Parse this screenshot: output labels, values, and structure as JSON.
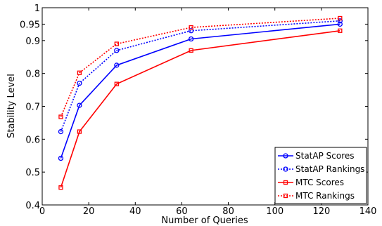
{
  "chart_data": {
    "type": "line",
    "title": "",
    "xlabel": "Number of Queries",
    "ylabel": "Stability Level",
    "xlim": [
      0,
      140
    ],
    "ylim": [
      0.4,
      1
    ],
    "xticks": [
      "0",
      "20",
      "40",
      "60",
      "80",
      "100",
      "120",
      "140"
    ],
    "yticks": [
      "0.4",
      "0.5",
      "0.6",
      "0.7",
      "0.8",
      "0.9",
      "0.95",
      "1"
    ],
    "grid": false,
    "legend_position": "bottom-right",
    "x": [
      8,
      16,
      32,
      64,
      128
    ],
    "series": [
      {
        "name": "StatAP Scores",
        "values": [
          0.542,
          0.703,
          0.825,
          0.905,
          0.95
        ],
        "color": "#0000ff",
        "line": "solid",
        "marker": "circle"
      },
      {
        "name": "StatAP Rankings",
        "values": [
          0.623,
          0.77,
          0.87,
          0.93,
          0.96
        ],
        "color": "#0000ff",
        "line": "dotted",
        "marker": "circle"
      },
      {
        "name": "MTC Scores",
        "values": [
          0.453,
          0.623,
          0.768,
          0.87,
          0.93
        ],
        "color": "#ff0000",
        "line": "solid",
        "marker": "square"
      },
      {
        "name": "MTC Rankings",
        "values": [
          0.668,
          0.802,
          0.89,
          0.94,
          0.968
        ],
        "color": "#ff0000",
        "line": "dotted",
        "marker": "square"
      }
    ]
  }
}
